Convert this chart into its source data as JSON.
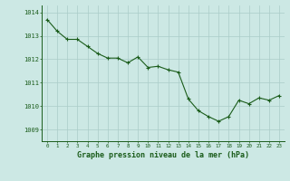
{
  "x": [
    0,
    1,
    2,
    3,
    4,
    5,
    6,
    7,
    8,
    9,
    10,
    11,
    12,
    13,
    14,
    15,
    16,
    17,
    18,
    19,
    20,
    21,
    22,
    23
  ],
  "y": [
    1013.7,
    1013.2,
    1012.85,
    1012.85,
    1012.55,
    1012.25,
    1012.05,
    1012.05,
    1011.85,
    1012.1,
    1011.65,
    1011.7,
    1011.55,
    1011.45,
    1010.3,
    1009.8,
    1009.55,
    1009.35,
    1009.55,
    1010.25,
    1010.1,
    1010.35,
    1010.25,
    1010.45
  ],
  "line_color": "#1a5c1a",
  "marker": "+",
  "marker_color": "#1a5c1a",
  "bg_color": "#cce8e4",
  "grid_color": "#aaccc8",
  "axis_label_color": "#1a5c1a",
  "tick_label_color": "#1a5c1a",
  "xlabel": "Graphe pression niveau de la mer (hPa)",
  "ylim": [
    1008.5,
    1014.3
  ],
  "yticks": [
    1009,
    1010,
    1011,
    1012,
    1013,
    1014
  ],
  "xticks": [
    0,
    1,
    2,
    3,
    4,
    5,
    6,
    7,
    8,
    9,
    10,
    11,
    12,
    13,
    14,
    15,
    16,
    17,
    18,
    19,
    20,
    21,
    22,
    23
  ]
}
